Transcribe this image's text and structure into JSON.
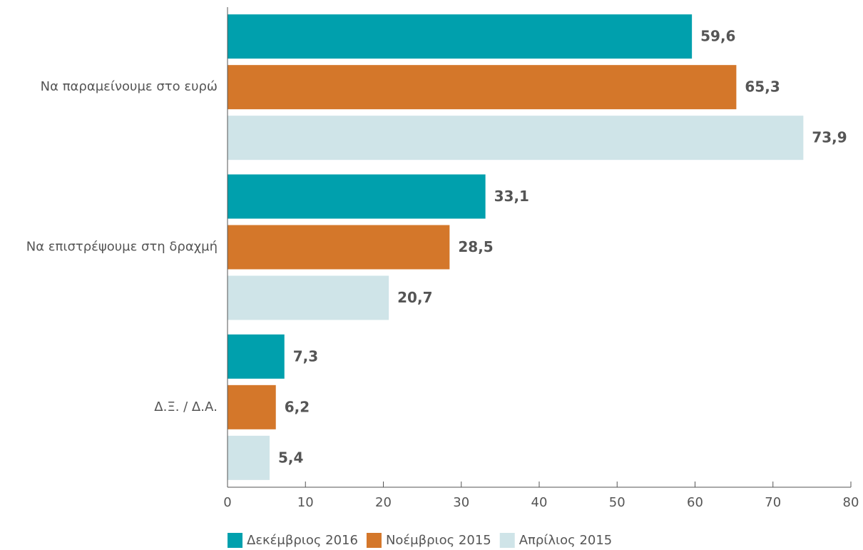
{
  "chart_data": {
    "type": "bar",
    "orientation": "horizontal",
    "categories": [
      "Να παραμείνουμε στο ευρώ",
      "Να επιστρέψουμε στη δραχμή",
      "Δ.Ξ. / Δ.Α."
    ],
    "series": [
      {
        "name": "Δεκέμβριος 2016",
        "color": "#00a0ad",
        "values": [
          59.6,
          33.1,
          7.3
        ],
        "value_labels": [
          "59,6",
          "33,1",
          "7,3"
        ]
      },
      {
        "name": "Νοέμβριος 2015",
        "color": "#d4772a",
        "values": [
          65.3,
          28.5,
          6.2
        ],
        "value_labels": [
          "65,3",
          "28,5",
          "6,2"
        ]
      },
      {
        "name": "Απρίλιος 2015",
        "color": "#cfe4e8",
        "values": [
          73.9,
          20.7,
          5.4
        ],
        "value_labels": [
          "73,9",
          "20,7",
          "5,4"
        ]
      }
    ],
    "xlim": [
      0,
      80
    ],
    "xticks": [
      0,
      10,
      20,
      30,
      40,
      50,
      60,
      70,
      80
    ],
    "legend": "bottom"
  }
}
